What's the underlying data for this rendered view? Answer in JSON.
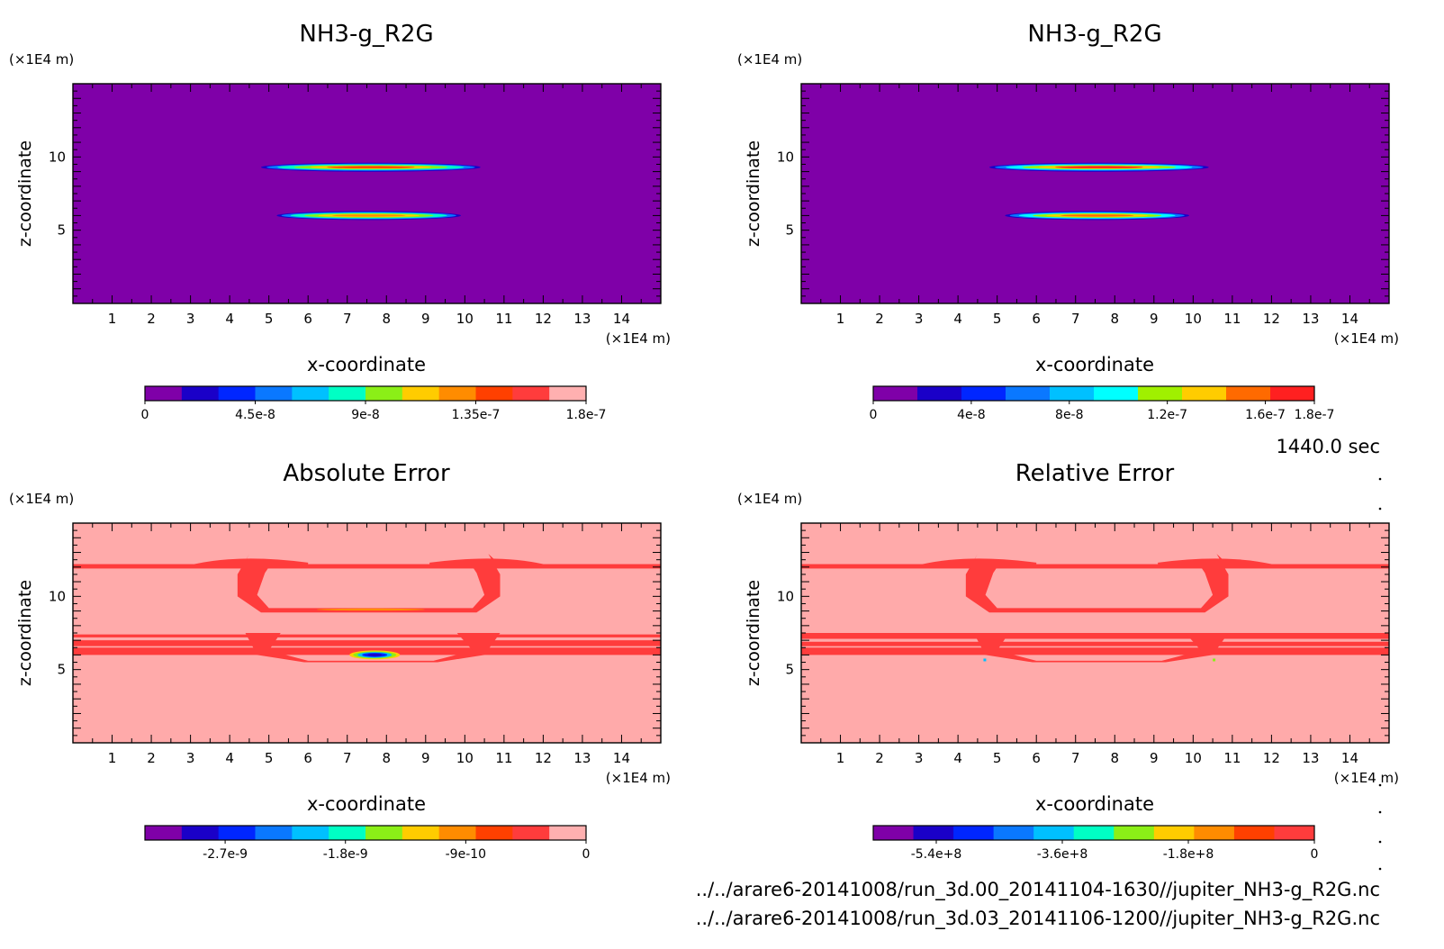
{
  "time_label": "1440.0 sec",
  "file_lines": [
    "../../arare6-20141008/run_3d.00_20141104-1630//jupiter_NH3-g_R2G.nc",
    "../../arare6-20141008/run_3d.03_20141106-1200//jupiter_NH3-g_R2G.nc"
  ],
  "chart_data": [
    {
      "type": "heatmap",
      "title": "NH3-g_R2G",
      "xlabel": "x-coordinate",
      "ylabel": "z-coordinate",
      "x_unit": "(×1E4 m)",
      "y_unit": "(×1E4 m)",
      "xlim": [
        0,
        15
      ],
      "ylim": [
        0,
        15
      ],
      "xticks": [
        1,
        2,
        3,
        4,
        5,
        6,
        7,
        8,
        9,
        10,
        11,
        12,
        13,
        14
      ],
      "yticks": [
        5,
        10
      ],
      "background_color": "#7f00a8",
      "colorbar": {
        "colors": [
          "#7f00a8",
          "#1a00c8",
          "#0026ff",
          "#0a78ff",
          "#00c0ff",
          "#00ffc4",
          "#8bef17",
          "#ffcc00",
          "#ff8c00",
          "#ff4000",
          "#ff3c3c",
          "#ffb0b0"
        ],
        "tick_labels": [
          "0",
          "4.5e-8",
          "9e-8",
          "1.35e-7",
          "1.8e-7"
        ],
        "tick_values": [
          0,
          4.5e-08,
          9e-08,
          1.35e-07,
          1.8e-07
        ],
        "range": [
          0,
          1.8e-07
        ]
      },
      "features": [
        {
          "name": "upper-band",
          "x_range": [
            4.8,
            10.4
          ],
          "z": 9.3,
          "peak": 1.8e-07
        },
        {
          "name": "lower-band",
          "x_range": [
            5.2,
            9.9
          ],
          "z": 6.0,
          "peak": 1e-07
        }
      ]
    },
    {
      "type": "heatmap",
      "title": "NH3-g_R2G",
      "xlabel": "x-coordinate",
      "ylabel": "z-coordinate",
      "x_unit": "(×1E4 m)",
      "y_unit": "(×1E4 m)",
      "xlim": [
        0,
        15
      ],
      "ylim": [
        0,
        15
      ],
      "xticks": [
        1,
        2,
        3,
        4,
        5,
        6,
        7,
        8,
        9,
        10,
        11,
        12,
        13,
        14
      ],
      "yticks": [
        5,
        10
      ],
      "background_color": "#7f00a8",
      "colorbar": {
        "colors": [
          "#7f00a8",
          "#1a00c8",
          "#0026ff",
          "#0a78ff",
          "#00c0ff",
          "#00ffff",
          "#a0f000",
          "#ffcc00",
          "#ff6a00",
          "#ff2020"
        ],
        "tick_labels": [
          "0",
          "4e-8",
          "8e-8",
          "1.2e-7",
          "1.6e-7",
          "1.8e-7"
        ],
        "tick_values": [
          0,
          4e-08,
          8e-08,
          1.2e-07,
          1.6e-07,
          1.8e-07
        ],
        "range": [
          0,
          1.8e-07
        ]
      },
      "features": [
        {
          "name": "upper-band",
          "x_range": [
            4.8,
            10.4
          ],
          "z": 9.3,
          "peak": 1.8e-07
        },
        {
          "name": "lower-band",
          "x_range": [
            5.2,
            9.9
          ],
          "z": 6.0,
          "peak": 1e-07
        }
      ]
    },
    {
      "type": "heatmap",
      "title": "Absolute Error",
      "xlabel": "x-coordinate",
      "ylabel": "z-coordinate",
      "x_unit": "(×1E4 m)",
      "y_unit": "(×1E4 m)",
      "xlim": [
        0,
        15
      ],
      "ylim": [
        0,
        15
      ],
      "xticks": [
        1,
        2,
        3,
        4,
        5,
        6,
        7,
        8,
        9,
        10,
        11,
        12,
        13,
        14
      ],
      "yticks": [
        5,
        10
      ],
      "background_color": "#ffaaaa",
      "colorbar": {
        "colors": [
          "#7f00a8",
          "#1a00c8",
          "#0026ff",
          "#0a78ff",
          "#00c0ff",
          "#00ffc4",
          "#8bef17",
          "#ffcc00",
          "#ff8c00",
          "#ff4000",
          "#ff3c3c",
          "#ffb0b0"
        ],
        "tick_labels": [
          "-2.7e-9",
          "-1.8e-9",
          "-9e-10",
          "0"
        ],
        "tick_values": [
          -2.7e-09,
          -1.8e-09,
          -9e-10,
          0
        ],
        "range": [
          -3.3e-09,
          0
        ]
      },
      "features": [
        {
          "name": "hot-spot",
          "x": 7.7,
          "z": 6.0,
          "min": -3.3e-09
        }
      ]
    },
    {
      "type": "heatmap",
      "title": "Relative Error",
      "xlabel": "x-coordinate",
      "ylabel": "z-coordinate",
      "x_unit": "(×1E4 m)",
      "y_unit": "(×1E4 m)",
      "xlim": [
        0,
        15
      ],
      "ylim": [
        0,
        15
      ],
      "xticks": [
        1,
        2,
        3,
        4,
        5,
        6,
        7,
        8,
        9,
        10,
        11,
        12,
        13,
        14
      ],
      "yticks": [
        5,
        10
      ],
      "background_color": "#ffaaaa",
      "colorbar": {
        "colors": [
          "#7f00a8",
          "#1a00c8",
          "#0026ff",
          "#0a78ff",
          "#00c0ff",
          "#00ffc4",
          "#8bef17",
          "#ffcc00",
          "#ff8c00",
          "#ff4000",
          "#ff3c3c"
        ],
        "tick_labels": [
          "-5.4e+8",
          "-3.6e+8",
          "-1.8e+8",
          "0"
        ],
        "tick_values": [
          -540000000.0,
          -360000000.0,
          -180000000.0,
          0
        ],
        "range": [
          -630000000.0,
          0
        ]
      },
      "features": [
        {
          "name": "ring-structure",
          "x_range": [
            4.5,
            10.5
          ],
          "z_range": [
            5.6,
            12.5
          ]
        }
      ]
    }
  ]
}
